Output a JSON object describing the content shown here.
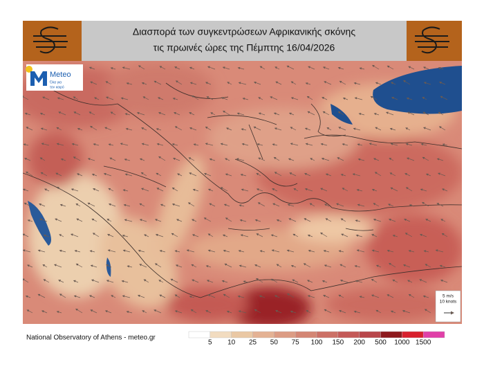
{
  "header": {
    "title_line1": "Διασπορά των συγκεντρώσεων Αφρικανικής σκόνης",
    "title_line2": "τις πρωινές ώρες της Πέμπτης 16/04/2026"
  },
  "logo": {
    "name": "Meteo",
    "tagline_line1": "Όλα για",
    "tagline_line2": "τον καιρό"
  },
  "wind_legend": {
    "speed": "5 m/s",
    "knots": "10 knots"
  },
  "footer": {
    "source": "National Observatory of Athens - meteo.gr"
  },
  "legend": {
    "ticks": [
      5,
      10,
      25,
      50,
      75,
      100,
      150,
      200,
      500,
      1000,
      1500
    ],
    "colors": [
      "#ffffff",
      "#f2dcc0",
      "#eac8a4",
      "#e4b294",
      "#dc9c84",
      "#d48674",
      "#cc7066",
      "#c45a58",
      "#b8464a",
      "#8e1a1e",
      "#d8202e",
      "#e040a8"
    ]
  }
}
